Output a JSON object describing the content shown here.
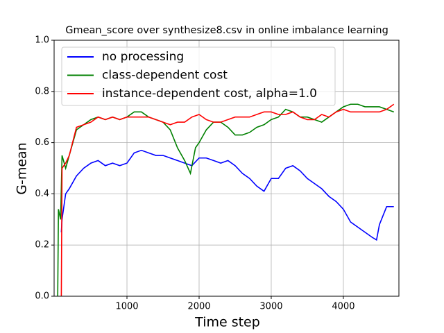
{
  "chart_data": {
    "type": "line",
    "title": "Gmean_score over synthesize8.csv in online imbalance learning",
    "x_label": "Time step",
    "y_label": "G-mean",
    "xlim": [
      -10,
      4770
    ],
    "ylim": [
      0,
      1
    ],
    "xticks": [
      1000,
      2000,
      3000,
      4000
    ],
    "yticks": [
      {
        "value": 0,
        "label": "0.0"
      },
      {
        "value": 0.2,
        "label": "0.2"
      },
      {
        "value": 0.4,
        "label": "0.4"
      },
      {
        "value": 0.6,
        "label": "0.6"
      },
      {
        "value": 0.8,
        "label": "0.8"
      },
      {
        "value": 1,
        "label": "1.0"
      }
    ],
    "grid": true,
    "legend": "upper left",
    "series": [
      {
        "name": "no processing",
        "color": "#0000ff",
        "x": [
          90,
          100,
          150,
          200,
          300,
          400,
          500,
          600,
          700,
          800,
          900,
          1000,
          1100,
          1200,
          1300,
          1400,
          1500,
          1600,
          1700,
          1800,
          1900,
          2000,
          2100,
          2200,
          2300,
          2400,
          2500,
          2600,
          2700,
          2800,
          2900,
          3000,
          3100,
          3200,
          3300,
          3400,
          3500,
          3600,
          3700,
          3800,
          3900,
          4000,
          4100,
          4200,
          4300,
          4400,
          4460,
          4500,
          4600,
          4650,
          4700
        ],
        "values": [
          0.25,
          0.3,
          0.4,
          0.42,
          0.47,
          0.5,
          0.52,
          0.53,
          0.51,
          0.52,
          0.51,
          0.52,
          0.56,
          0.57,
          0.56,
          0.55,
          0.55,
          0.54,
          0.53,
          0.52,
          0.51,
          0.54,
          0.54,
          0.53,
          0.52,
          0.53,
          0.51,
          0.48,
          0.46,
          0.43,
          0.41,
          0.46,
          0.46,
          0.5,
          0.51,
          0.49,
          0.46,
          0.44,
          0.42,
          0.39,
          0.37,
          0.34,
          0.29,
          0.27,
          0.25,
          0.23,
          0.22,
          0.28,
          0.35,
          0.35,
          0.35
        ]
      },
      {
        "name": "class-dependent cost",
        "color": "#008000",
        "x": [
          40,
          50,
          80,
          100,
          150,
          200,
          300,
          400,
          500,
          600,
          700,
          800,
          900,
          1000,
          1100,
          1200,
          1300,
          1400,
          1500,
          1600,
          1700,
          1800,
          1880,
          1950,
          2000,
          2100,
          2200,
          2300,
          2400,
          2500,
          2600,
          2700,
          2800,
          2900,
          3000,
          3100,
          3200,
          3300,
          3400,
          3500,
          3600,
          3700,
          3800,
          3900,
          4000,
          4100,
          4200,
          4300,
          4400,
          4500,
          4600,
          4700
        ],
        "values": [
          0.0,
          0.34,
          0.3,
          0.55,
          0.5,
          0.55,
          0.65,
          0.67,
          0.69,
          0.7,
          0.69,
          0.7,
          0.69,
          0.7,
          0.72,
          0.72,
          0.7,
          0.69,
          0.68,
          0.65,
          0.58,
          0.53,
          0.48,
          0.58,
          0.6,
          0.65,
          0.68,
          0.68,
          0.66,
          0.63,
          0.63,
          0.64,
          0.66,
          0.67,
          0.69,
          0.7,
          0.73,
          0.72,
          0.7,
          0.7,
          0.69,
          0.68,
          0.7,
          0.72,
          0.74,
          0.75,
          0.75,
          0.74,
          0.74,
          0.74,
          0.73,
          0.72
        ]
      },
      {
        "name": "instance-dependent cost, alpha=1.0",
        "color": "#ff0000",
        "x": [
          90,
          100,
          150,
          200,
          300,
          400,
          500,
          600,
          700,
          800,
          900,
          1000,
          1100,
          1200,
          1300,
          1400,
          1500,
          1600,
          1700,
          1800,
          1900,
          2000,
          2100,
          2200,
          2300,
          2400,
          2500,
          2600,
          2700,
          2800,
          2900,
          3000,
          3100,
          3200,
          3300,
          3400,
          3500,
          3600,
          3700,
          3800,
          3900,
          4000,
          4100,
          4200,
          4300,
          4400,
          4500,
          4600,
          4700
        ],
        "values": [
          0.0,
          0.5,
          0.52,
          0.55,
          0.66,
          0.67,
          0.68,
          0.7,
          0.69,
          0.7,
          0.69,
          0.7,
          0.7,
          0.7,
          0.7,
          0.69,
          0.68,
          0.67,
          0.68,
          0.68,
          0.7,
          0.71,
          0.69,
          0.68,
          0.68,
          0.69,
          0.7,
          0.7,
          0.7,
          0.71,
          0.72,
          0.72,
          0.71,
          0.71,
          0.72,
          0.7,
          0.69,
          0.69,
          0.71,
          0.7,
          0.72,
          0.73,
          0.72,
          0.72,
          0.72,
          0.72,
          0.72,
          0.73,
          0.75
        ]
      }
    ]
  }
}
